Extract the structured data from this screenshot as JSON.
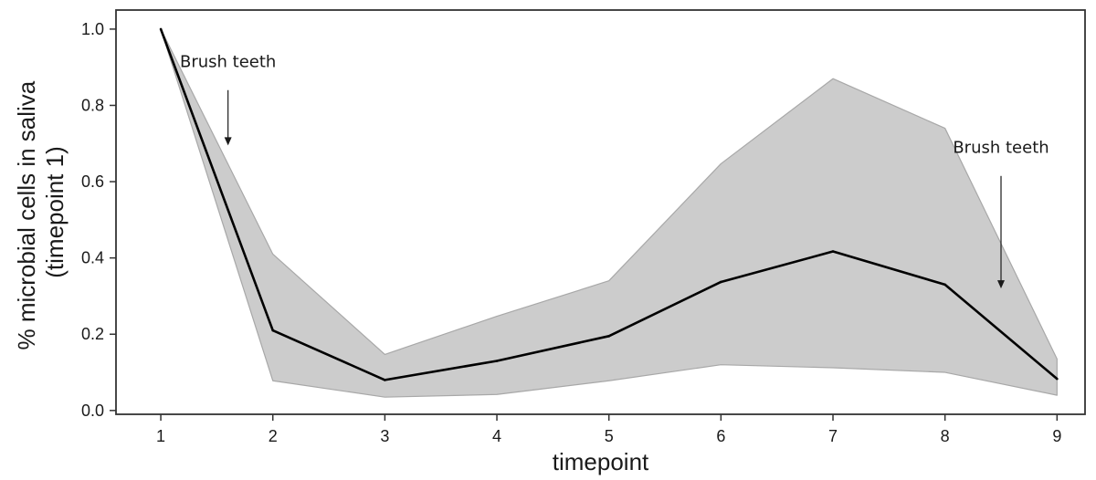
{
  "chart_data": {
    "type": "line",
    "xlabel": "timepoint",
    "ylabel_lines": [
      "% microbial cells in saliva",
      "(timepoint 1)"
    ],
    "x": [
      1,
      2,
      3,
      4,
      5,
      6,
      7,
      8,
      9
    ],
    "x_ticks": [
      "1",
      "2",
      "3",
      "4",
      "5",
      "6",
      "7",
      "8",
      "9"
    ],
    "xlim": [
      0.6,
      9.25
    ],
    "ylim": [
      -0.01,
      1.05
    ],
    "y_ticks": [
      0.0,
      0.2,
      0.4,
      0.6,
      0.8,
      1.0
    ],
    "y_tick_labels": [
      "0.0",
      "0.2",
      "0.4",
      "0.6",
      "0.8",
      "1.0"
    ],
    "series": [
      {
        "values": [
          1.0,
          0.21,
          0.08,
          0.13,
          0.195,
          0.337,
          0.417,
          0.33,
          0.083
        ]
      }
    ],
    "band": {
      "upper": [
        1.0,
        0.41,
        0.147,
        0.247,
        0.34,
        0.647,
        0.87,
        0.74,
        0.135
      ],
      "lower": [
        1.0,
        0.078,
        0.035,
        0.042,
        0.078,
        0.12,
        0.112,
        0.1,
        0.04
      ]
    },
    "annotations": [
      {
        "text": "Brush teeth",
        "x_text": 1.6,
        "y_text": 0.9,
        "x_arrow": 1.6,
        "y_start": 0.84,
        "y_end": 0.695
      },
      {
        "text": "Brush teeth",
        "x_text": 8.5,
        "y_text": 0.675,
        "x_arrow": 8.5,
        "y_start": 0.615,
        "y_end": 0.32
      }
    ],
    "grid": false,
    "colors": {
      "line": "#000000",
      "band_fill": "#cccccc",
      "band_edge": "#a8a8a8",
      "axes": "#333333"
    }
  }
}
